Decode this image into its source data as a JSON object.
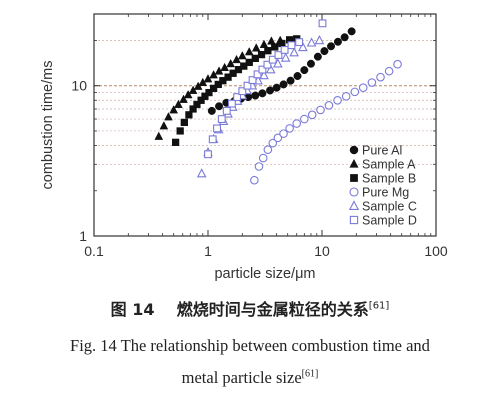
{
  "chart_data": {
    "type": "scatter",
    "xscale": "log",
    "yscale": "log",
    "xlim": [
      0.1,
      100
    ],
    "ylim": [
      1,
      30
    ],
    "xlabel": "particle size/μm",
    "ylabel": "combustion time/ms",
    "xticks": [
      {
        "value": 0.1,
        "label": "0.1"
      },
      {
        "value": 1,
        "label": "1"
      },
      {
        "value": 10,
        "label": "10"
      },
      {
        "value": 100,
        "label": "100"
      }
    ],
    "yticks": [
      {
        "value": 1,
        "label": "1"
      },
      {
        "value": 10,
        "label": "10"
      }
    ],
    "grid": "horizontal dashed",
    "legend_position": "lower-right",
    "series": [
      {
        "name": "Pure Al",
        "marker": "circle",
        "filled": true,
        "color": "#111111",
        "points": [
          [
            1.08,
            6.8
          ],
          [
            1.25,
            7.3
          ],
          [
            1.45,
            7.7
          ],
          [
            1.7,
            7.9
          ],
          [
            1.95,
            8.2
          ],
          [
            2.25,
            8.4
          ],
          [
            2.6,
            8.6
          ],
          [
            3.0,
            8.9
          ],
          [
            3.5,
            9.3
          ],
          [
            4.0,
            9.7
          ],
          [
            4.6,
            10.2
          ],
          [
            5.3,
            10.8
          ],
          [
            6.1,
            11.6
          ],
          [
            7.0,
            12.7
          ],
          [
            8.0,
            14.0
          ],
          [
            9.2,
            15.6
          ],
          [
            10.5,
            17.0
          ],
          [
            12.0,
            18.3
          ],
          [
            13.8,
            19.6
          ],
          [
            15.8,
            21.0
          ],
          [
            18.2,
            23.0
          ]
        ]
      },
      {
        "name": "Sample A",
        "marker": "triangle",
        "filled": true,
        "color": "#111111",
        "points": [
          [
            0.37,
            4.6
          ],
          [
            0.41,
            5.4
          ],
          [
            0.45,
            6.2
          ],
          [
            0.5,
            6.9
          ],
          [
            0.55,
            7.5
          ],
          [
            0.61,
            8.1
          ],
          [
            0.67,
            8.7
          ],
          [
            0.74,
            9.3
          ],
          [
            0.82,
            9.9
          ],
          [
            0.9,
            10.5
          ],
          [
            1.0,
            11.1
          ],
          [
            1.12,
            11.8
          ],
          [
            1.25,
            12.5
          ],
          [
            1.4,
            13.2
          ],
          [
            1.58,
            14.0
          ],
          [
            1.78,
            14.9
          ],
          [
            2.0,
            15.8
          ],
          [
            2.3,
            16.8
          ],
          [
            2.65,
            17.8
          ],
          [
            3.1,
            18.8
          ],
          [
            3.6,
            19.8
          ],
          [
            4.3,
            20.0
          ]
        ]
      },
      {
        "name": "Sample B",
        "marker": "square",
        "filled": true,
        "color": "#111111",
        "points": [
          [
            0.52,
            4.2
          ],
          [
            0.57,
            5.0
          ],
          [
            0.62,
            5.7
          ],
          [
            0.68,
            6.4
          ],
          [
            0.74,
            7.0
          ],
          [
            0.8,
            7.5
          ],
          [
            0.87,
            8.0
          ],
          [
            0.94,
            8.5
          ],
          [
            1.02,
            9.0
          ],
          [
            1.12,
            9.6
          ],
          [
            1.23,
            10.2
          ],
          [
            1.35,
            10.8
          ],
          [
            1.5,
            11.4
          ],
          [
            1.66,
            12.1
          ],
          [
            1.85,
            12.8
          ],
          [
            2.06,
            13.5
          ],
          [
            2.3,
            14.3
          ],
          [
            2.6,
            15.2
          ],
          [
            2.95,
            16.1
          ],
          [
            3.35,
            17.1
          ],
          [
            3.85,
            18.1
          ],
          [
            4.45,
            19.1
          ],
          [
            5.2,
            20.2
          ],
          [
            6.0,
            20.5
          ]
        ]
      },
      {
        "name": "Pure Mg",
        "marker": "circle",
        "filled": false,
        "color": "#7a7ad8",
        "points": [
          [
            2.55,
            2.35
          ],
          [
            2.8,
            2.9
          ],
          [
            3.05,
            3.3
          ],
          [
            3.35,
            3.75
          ],
          [
            3.7,
            4.15
          ],
          [
            4.1,
            4.5
          ],
          [
            4.6,
            4.8
          ],
          [
            5.2,
            5.2
          ],
          [
            6.0,
            5.6
          ],
          [
            7.0,
            6.0
          ],
          [
            8.2,
            6.4
          ],
          [
            9.7,
            6.9
          ],
          [
            11.5,
            7.4
          ],
          [
            13.7,
            8.0
          ],
          [
            16.3,
            8.5
          ],
          [
            19.4,
            9.1
          ],
          [
            23.0,
            9.7
          ],
          [
            27.4,
            10.5
          ],
          [
            32.6,
            11.4
          ],
          [
            38.8,
            12.5
          ],
          [
            46.0,
            13.9
          ]
        ]
      },
      {
        "name": "Sample C",
        "marker": "triangle",
        "filled": false,
        "color": "#7a7ad8",
        "points": [
          [
            0.88,
            2.6
          ],
          [
            1.0,
            3.6
          ],
          [
            1.12,
            4.4
          ],
          [
            1.24,
            5.1
          ],
          [
            1.37,
            5.8
          ],
          [
            1.5,
            6.5
          ],
          [
            1.65,
            7.2
          ],
          [
            1.82,
            7.9
          ],
          [
            2.0,
            8.6
          ],
          [
            2.2,
            9.3
          ],
          [
            2.45,
            10.0
          ],
          [
            2.75,
            10.8
          ],
          [
            3.1,
            11.7
          ],
          [
            3.55,
            12.8
          ],
          [
            4.1,
            14.0
          ],
          [
            4.8,
            15.3
          ],
          [
            5.7,
            16.6
          ],
          [
            6.8,
            18.0
          ],
          [
            8.1,
            19.3
          ],
          [
            9.5,
            20.0
          ]
        ]
      },
      {
        "name": "Sample D",
        "marker": "square",
        "filled": false,
        "color": "#7a7ad8",
        "points": [
          [
            1.0,
            3.5
          ],
          [
            1.1,
            4.4
          ],
          [
            1.2,
            5.2
          ],
          [
            1.32,
            6.0
          ],
          [
            1.46,
            6.8
          ],
          [
            1.62,
            7.6
          ],
          [
            1.8,
            8.4
          ],
          [
            2.0,
            9.2
          ],
          [
            2.22,
            10.0
          ],
          [
            2.46,
            10.9
          ],
          [
            2.72,
            11.9
          ],
          [
            3.0,
            12.8
          ],
          [
            3.32,
            13.8
          ],
          [
            3.7,
            14.9
          ],
          [
            4.15,
            16.0
          ],
          [
            4.7,
            17.3
          ],
          [
            5.4,
            18.6
          ],
          [
            6.3,
            19.5
          ],
          [
            10.1,
            26.0
          ]
        ]
      }
    ]
  },
  "caption": {
    "cn_label": "图 14",
    "cn_text": "燃烧时间与金属粒径的关系",
    "ref": "[61]",
    "en_line1": "Fig. 14    The relationship between combustion time and",
    "en_line2": "metal particle size"
  }
}
